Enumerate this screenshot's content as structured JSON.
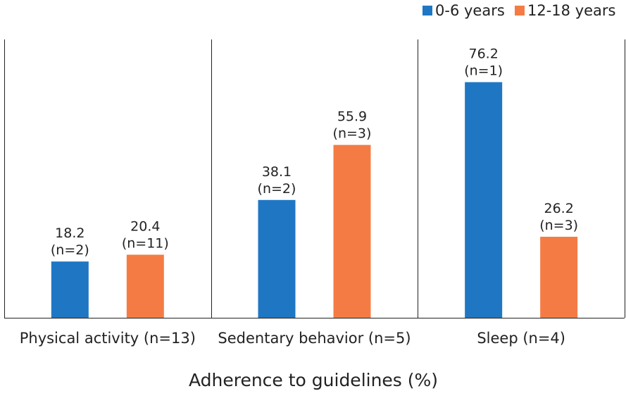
{
  "chart_data": {
    "type": "bar",
    "title": "",
    "xlabel": "Adherence to guidelines (%)",
    "ylabel": "",
    "ylim": [
      0,
      90
    ],
    "grid": false,
    "legend_position": "top-right",
    "categories": [
      "Physical activity (n=13)",
      "Sedentary behavior (n=5)",
      "Sleep (n=4)"
    ],
    "series": [
      {
        "name": "0-6 years",
        "color": "#1F77C4",
        "values": [
          18.2,
          38.1,
          76.2
        ],
        "counts": [
          "(n=2)",
          "(n=2)",
          "(n=1)"
        ]
      },
      {
        "name": "12-18 years",
        "color": "#F47C44",
        "values": [
          20.4,
          55.9,
          26.2
        ],
        "counts": [
          "(n=11)",
          "(n=3)",
          "(n=3)"
        ]
      }
    ]
  }
}
